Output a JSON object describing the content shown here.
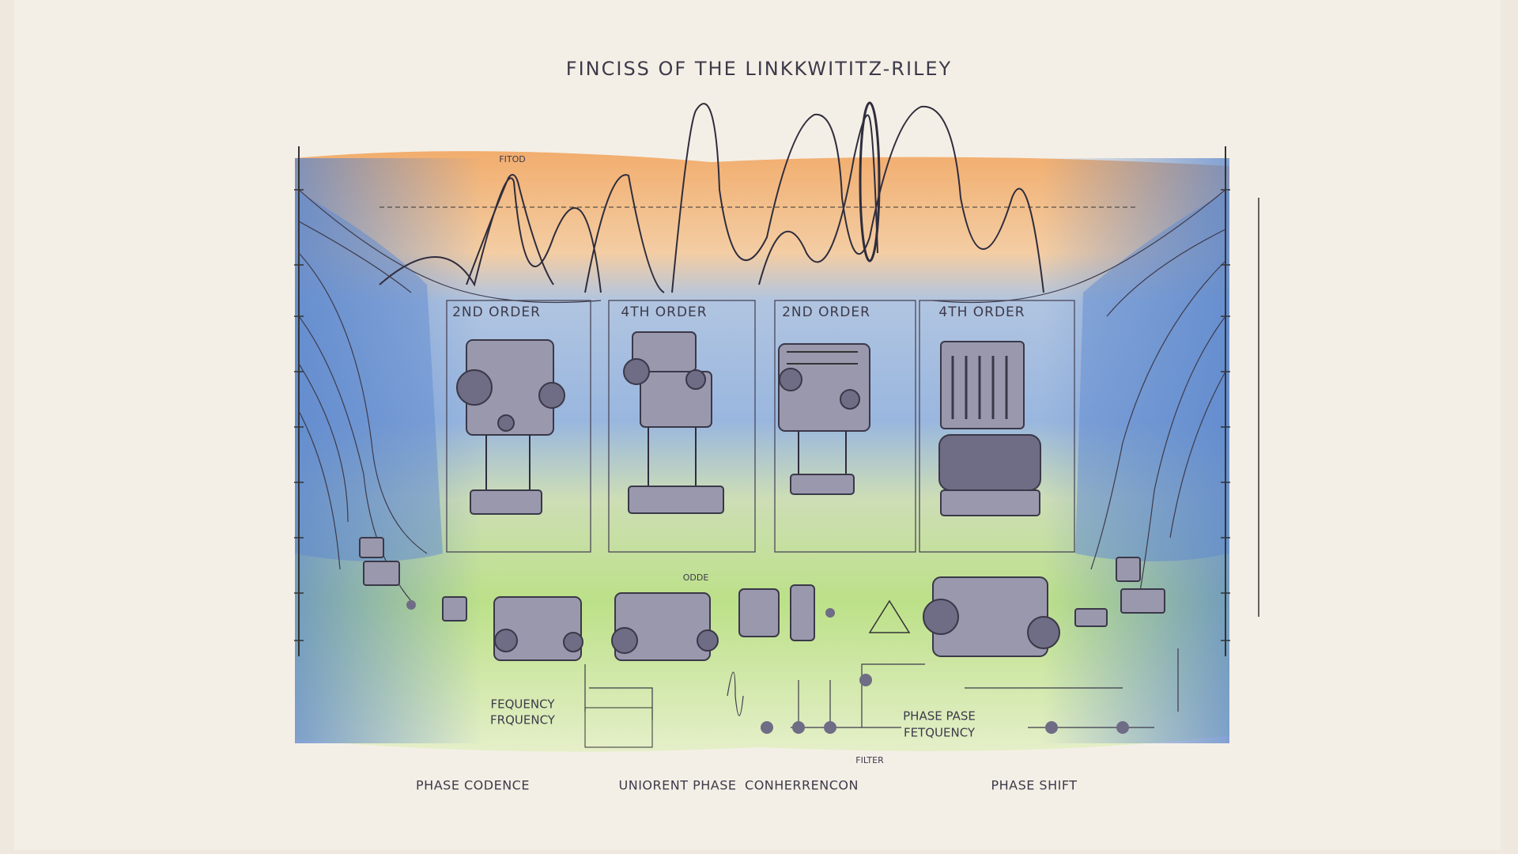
{
  "title": "FINCISS OF THE LINKKWITITZ-RILEY",
  "panels": [
    {
      "label": "2ND ORDER"
    },
    {
      "label": "4TH ORDER"
    },
    {
      "label": "2ND ORDER"
    },
    {
      "label": "4TH ORDER"
    }
  ],
  "small_labels": [
    "FITOD",
    "ODDE",
    "FILTER"
  ],
  "annotations": [
    {
      "lines": [
        "FEQUENCY",
        "FRQUENCY"
      ]
    },
    {
      "lines": [
        "PHASE PASE",
        "FETQUENCY"
      ]
    }
  ],
  "bottom_labels": [
    "PHASE CODENCE",
    "UNIORENT PHASE",
    "CONHERRENCON",
    "PHASE SHIFT"
  ]
}
